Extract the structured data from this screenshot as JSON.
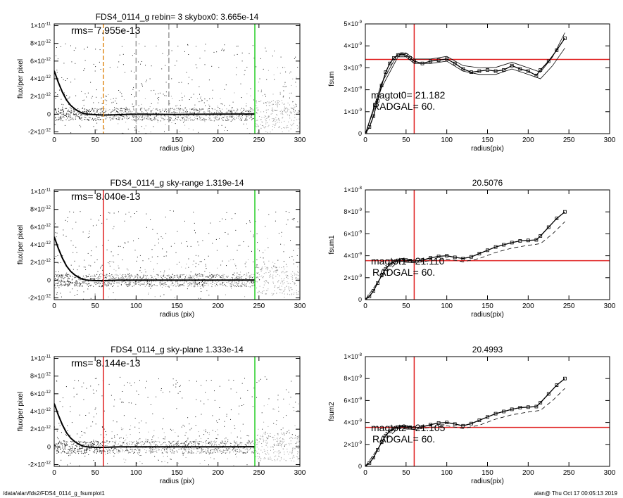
{
  "footer": {
    "left": "/data/alan/fds2/FDS4_0114_g_fsumplot1",
    "right": "alan@  Thu Oct 17 00:05:13 2019"
  },
  "colors": {
    "marker_red": "#e02020",
    "marker_green": "#22cc22",
    "marker_orange": "#e08a1e",
    "marker_gray": "#9a9a9a",
    "scatter_dark": "#222222",
    "scatter_light": "#999999"
  },
  "chart_data": [
    {
      "type": "scatter",
      "title": "FDS4_0114_g rebin= 3    skybox0:  3.665e-14",
      "annotation": "rms= 7.955e-13",
      "xlabel": "radius (pix)",
      "ylabel": "flux/per pixel",
      "xlim": [
        0,
        300
      ],
      "ylim": [
        -2.2e-12,
        1.02e-11
      ],
      "xticks": [
        "0",
        "50",
        "100",
        "150",
        "200",
        "250",
        "300"
      ],
      "yticks": [
        {
          "v": -2e-12,
          "m": "-2",
          "e": "-12"
        },
        {
          "v": 0,
          "m": "0",
          "e": ""
        },
        {
          "v": 2e-12,
          "m": "2",
          "e": "-12"
        },
        {
          "v": 4e-12,
          "m": "4",
          "e": "-12"
        },
        {
          "v": 6e-12,
          "m": "6",
          "e": "-12"
        },
        {
          "v": 8e-12,
          "m": "8",
          "e": "-12"
        },
        {
          "v": 1e-11,
          "m": "1",
          "e": "-11"
        }
      ],
      "vlines": [
        {
          "x": 60,
          "color": "orange",
          "dash": true
        },
        {
          "x": 100,
          "color": "gray",
          "dash": true
        },
        {
          "x": 140,
          "color": "gray",
          "dash": true
        },
        {
          "x": 245,
          "color": "green",
          "dash": false
        }
      ],
      "profile": {
        "x": [
          0,
          5,
          10,
          15,
          20,
          25,
          30,
          35,
          40,
          50,
          60,
          80,
          100,
          150,
          200,
          245
        ],
        "y": [
          4.9e-12,
          3.6e-12,
          2.5e-12,
          1.6e-12,
          1e-12,
          6e-13,
          3e-13,
          1e-13,
          0,
          -5e-14,
          -1e-13,
          -5e-14,
          0,
          -3e-14,
          0,
          2e-14
        ]
      }
    },
    {
      "type": "line",
      "title": "",
      "annotation_lines": [
        "magtot0=  21.182",
        "RADGAL=     60."
      ],
      "xlabel": "radius(pix)",
      "ylabel": "fsum",
      "xlim": [
        0,
        300
      ],
      "ylim": [
        0,
        5e-09
      ],
      "xticks": [
        "0",
        "50",
        "100",
        "150",
        "200",
        "250",
        "300"
      ],
      "yticks": [
        {
          "v": 0,
          "m": "0",
          "e": ""
        },
        {
          "v": 1e-09,
          "m": "1",
          "e": "-9"
        },
        {
          "v": 2e-09,
          "m": "2",
          "e": "-9"
        },
        {
          "v": 3e-09,
          "m": "3",
          "e": "-9"
        },
        {
          "v": 4e-09,
          "m": "4",
          "e": "-9"
        },
        {
          "v": 5e-09,
          "m": "5",
          "e": "-9"
        }
      ],
      "vline_x": 60,
      "hline_y": 3.38e-09,
      "series": [
        {
          "x": [
            0,
            5,
            10,
            15,
            20,
            25,
            30,
            35,
            40,
            45,
            50,
            55,
            60,
            70,
            80,
            90,
            100,
            110,
            120,
            130,
            140,
            150,
            160,
            170,
            180,
            190,
            200,
            210,
            215,
            225,
            235,
            245
          ],
          "y": [
            0,
            3e-10,
            8e-10,
            1.5e-09,
            2.2e-09,
            2.8e-09,
            3.2e-09,
            3.45e-09,
            3.58e-09,
            3.62e-09,
            3.58e-09,
            3.45e-09,
            3.3e-09,
            3.2e-09,
            3.3e-09,
            3.35e-09,
            3.4e-09,
            3.2e-09,
            2.95e-09,
            2.8e-09,
            2.85e-09,
            2.9e-09,
            2.85e-09,
            2.9e-09,
            3.1e-09,
            2.95e-09,
            2.85e-09,
            2.65e-09,
            2.9e-09,
            3.3e-09,
            3.8e-09,
            4.35e-09
          ]
        },
        {
          "x": [
            0,
            20,
            40,
            50,
            60,
            80,
            100,
            120,
            140,
            160,
            180,
            200,
            215,
            230,
            245
          ],
          "y": [
            0,
            2.3e-09,
            3.65e-09,
            3.68e-09,
            3.4e-09,
            3.4e-09,
            3.52e-09,
            3.1e-09,
            3e-09,
            3.02e-09,
            3.25e-09,
            3e-09,
            2.8e-09,
            3.5e-09,
            4.6e-09
          ]
        },
        {
          "x": [
            0,
            20,
            40,
            50,
            60,
            80,
            100,
            120,
            140,
            160,
            180,
            200,
            215,
            230,
            245
          ],
          "y": [
            0,
            2.1e-09,
            3.5e-09,
            3.5e-09,
            3.2e-09,
            3.2e-09,
            3.3e-09,
            2.85e-09,
            2.7e-09,
            2.7e-09,
            2.95e-09,
            2.7e-09,
            2.5e-09,
            3.1e-09,
            3.9e-09
          ]
        }
      ]
    },
    {
      "type": "scatter",
      "title": "FDS4_0114_g sky-range  1.319e-14",
      "annotation": "rms= 8.040e-13",
      "xlabel": "radius (pix)",
      "ylabel": "flux/per pixel",
      "xlim": [
        0,
        300
      ],
      "ylim": [
        -2.2e-12,
        1.02e-11
      ],
      "xticks": [
        "0",
        "50",
        "100",
        "150",
        "200",
        "250",
        "300"
      ],
      "yticks": [
        {
          "v": -2e-12,
          "m": "-2",
          "e": "-12"
        },
        {
          "v": 0,
          "m": "0",
          "e": ""
        },
        {
          "v": 2e-12,
          "m": "2",
          "e": "-12"
        },
        {
          "v": 4e-12,
          "m": "4",
          "e": "-12"
        },
        {
          "v": 6e-12,
          "m": "6",
          "e": "-12"
        },
        {
          "v": 8e-12,
          "m": "8",
          "e": "-12"
        },
        {
          "v": 1e-11,
          "m": "1",
          "e": "-11"
        }
      ],
      "vlines": [
        {
          "x": 60,
          "color": "red",
          "dash": false
        },
        {
          "x": 245,
          "color": "green",
          "dash": false
        }
      ],
      "profile": {
        "x": [
          0,
          5,
          10,
          15,
          20,
          25,
          30,
          35,
          40,
          50,
          60,
          80,
          100,
          150,
          200,
          245
        ],
        "y": [
          4.9e-12,
          3.6e-12,
          2.5e-12,
          1.6e-12,
          1e-12,
          6e-13,
          3e-13,
          1e-13,
          0,
          -5e-14,
          -5e-14,
          0,
          0,
          0,
          0,
          2e-14
        ]
      }
    },
    {
      "type": "line",
      "title": "20.5076",
      "annotation_lines": [
        "magtot1=  21.110",
        "RADGAL=     60."
      ],
      "xlabel": "radius(pix)",
      "ylabel": "fsum1",
      "xlim": [
        0,
        300
      ],
      "ylim": [
        0,
        1e-08
      ],
      "xticks": [
        "0",
        "50",
        "100",
        "150",
        "200",
        "250",
        "300"
      ],
      "yticks": [
        {
          "v": 0,
          "m": "0",
          "e": ""
        },
        {
          "v": 2e-09,
          "m": "2",
          "e": "-9"
        },
        {
          "v": 4e-09,
          "m": "4",
          "e": "-9"
        },
        {
          "v": 6e-09,
          "m": "6",
          "e": "-9"
        },
        {
          "v": 8e-09,
          "m": "8",
          "e": "-9"
        },
        {
          "v": 1e-08,
          "m": "1",
          "e": "-8"
        }
      ],
      "vline_x": 60,
      "hline_y": 3.55e-09,
      "series": [
        {
          "x": [
            0,
            5,
            10,
            15,
            20,
            25,
            30,
            35,
            40,
            45,
            50,
            55,
            60,
            70,
            80,
            90,
            100,
            110,
            120,
            130,
            140,
            150,
            160,
            170,
            180,
            190,
            200,
            210,
            215,
            225,
            235,
            245
          ],
          "y": [
            0,
            3e-10,
            8e-10,
            1.5e-09,
            2.2e-09,
            2.8e-09,
            3.2e-09,
            3.45e-09,
            3.58e-09,
            3.62e-09,
            3.6e-09,
            3.55e-09,
            3.5e-09,
            3.6e-09,
            3.8e-09,
            3.95e-09,
            4e-09,
            3.85e-09,
            3.75e-09,
            3.9e-09,
            4.2e-09,
            4.5e-09,
            4.8e-09,
            5e-09,
            5.2e-09,
            5.35e-09,
            5.4e-09,
            5.45e-09,
            5.8e-09,
            6.6e-09,
            7.4e-09,
            8e-09
          ]
        },
        {
          "x": [
            0,
            20,
            40,
            60,
            80,
            100,
            120,
            140,
            160,
            180,
            200,
            215,
            230,
            245
          ],
          "y": [
            0,
            2.1e-09,
            3.45e-09,
            3.35e-09,
            3.55e-09,
            3.7e-09,
            3.45e-09,
            3.75e-09,
            4.3e-09,
            4.7e-09,
            4.95e-09,
            5.1e-09,
            6e-09,
            7.1e-09
          ]
        }
      ]
    },
    {
      "type": "scatter",
      "title": "FDS4_0114_g sky-plane  1.333e-14",
      "annotation": "rms= 8.144e-13",
      "xlabel": "radius (pix)",
      "ylabel": "flux/per pixel",
      "xlim": [
        0,
        300
      ],
      "ylim": [
        -2.2e-12,
        1.02e-11
      ],
      "xticks": [
        "0",
        "50",
        "100",
        "150",
        "200",
        "250",
        "300"
      ],
      "yticks": [
        {
          "v": -2e-12,
          "m": "-2",
          "e": "-12"
        },
        {
          "v": 0,
          "m": "0",
          "e": ""
        },
        {
          "v": 2e-12,
          "m": "2",
          "e": "-12"
        },
        {
          "v": 4e-12,
          "m": "4",
          "e": "-12"
        },
        {
          "v": 6e-12,
          "m": "6",
          "e": "-12"
        },
        {
          "v": 8e-12,
          "m": "8",
          "e": "-12"
        },
        {
          "v": 1e-11,
          "m": "1",
          "e": "-11"
        }
      ],
      "vlines": [
        {
          "x": 60,
          "color": "red",
          "dash": false
        },
        {
          "x": 245,
          "color": "green",
          "dash": false
        }
      ],
      "profile": {
        "x": [
          0,
          5,
          10,
          15,
          20,
          25,
          30,
          35,
          40,
          50,
          60,
          80,
          100,
          150,
          200,
          245
        ],
        "y": [
          4.9e-12,
          3.6e-12,
          2.5e-12,
          1.6e-12,
          1e-12,
          6e-13,
          3e-13,
          1e-13,
          0,
          -5e-14,
          -5e-14,
          0,
          0,
          0,
          0,
          2e-14
        ]
      }
    },
    {
      "type": "line",
      "title": "20.4993",
      "annotation_lines": [
        "magtot2=  21.105",
        "RADGAL=     60."
      ],
      "xlabel": "radius(pix)",
      "ylabel": "fsum2",
      "xlim": [
        0,
        300
      ],
      "ylim": [
        0,
        1e-08
      ],
      "xticks": [
        "0",
        "50",
        "100",
        "150",
        "200",
        "250",
        "300"
      ],
      "yticks": [
        {
          "v": 0,
          "m": "0",
          "e": ""
        },
        {
          "v": 2e-09,
          "m": "2",
          "e": "-9"
        },
        {
          "v": 4e-09,
          "m": "4",
          "e": "-9"
        },
        {
          "v": 6e-09,
          "m": "6",
          "e": "-9"
        },
        {
          "v": 8e-09,
          "m": "8",
          "e": "-9"
        },
        {
          "v": 1e-08,
          "m": "1",
          "e": "-8"
        }
      ],
      "vline_x": 60,
      "hline_y": 3.55e-09,
      "series": [
        {
          "x": [
            0,
            5,
            10,
            15,
            20,
            25,
            30,
            35,
            40,
            45,
            50,
            55,
            60,
            70,
            80,
            90,
            100,
            110,
            120,
            130,
            140,
            150,
            160,
            170,
            180,
            190,
            200,
            210,
            215,
            225,
            235,
            245
          ],
          "y": [
            0,
            3e-10,
            8e-10,
            1.5e-09,
            2.2e-09,
            2.8e-09,
            3.2e-09,
            3.45e-09,
            3.58e-09,
            3.62e-09,
            3.6e-09,
            3.55e-09,
            3.5e-09,
            3.6e-09,
            3.8e-09,
            3.95e-09,
            4e-09,
            3.85e-09,
            3.7e-09,
            3.9e-09,
            4.2e-09,
            4.5e-09,
            4.8e-09,
            5e-09,
            5.2e-09,
            5.35e-09,
            5.4e-09,
            5.45e-09,
            5.8e-09,
            6.6e-09,
            7.4e-09,
            8e-09
          ]
        },
        {
          "x": [
            0,
            20,
            40,
            60,
            80,
            100,
            120,
            140,
            160,
            180,
            200,
            215,
            230,
            245
          ],
          "y": [
            0,
            2.1e-09,
            3.45e-09,
            3.35e-09,
            3.55e-09,
            3.7e-09,
            3.45e-09,
            3.75e-09,
            4.3e-09,
            4.7e-09,
            4.95e-09,
            5.1e-09,
            6e-09,
            7.1e-09
          ]
        }
      ]
    }
  ]
}
